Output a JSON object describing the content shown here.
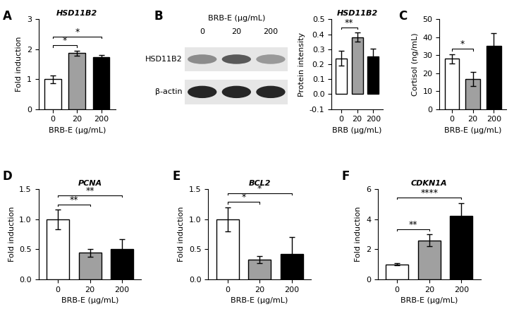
{
  "panel_labels": [
    "A",
    "B",
    "C",
    "D",
    "E",
    "F"
  ],
  "blot": {
    "header": "BRB-E (μg/mL)",
    "lanes": [
      "0",
      "20",
      "200"
    ],
    "rows": [
      "HSD11B2",
      "β-actin"
    ]
  },
  "chart_data": [
    {
      "type": "bar",
      "title": "HSD11B2",
      "ylabel": "Fold induction",
      "xlabel": "BRB-E (μg/mL)",
      "categories": [
        "0",
        "20",
        "200"
      ],
      "values": [
        1.0,
        1.87,
        1.73
      ],
      "errors": [
        0.13,
        0.08,
        0.08
      ],
      "colors": [
        "#ffffff",
        "#a0a0a0",
        "#000000"
      ],
      "ylim": [
        0,
        3
      ],
      "yticks": [
        0,
        1,
        2,
        3
      ],
      "annotations": [
        {
          "from": "0",
          "to": "20",
          "text": "*"
        },
        {
          "from": "0",
          "to": "200",
          "text": "*"
        }
      ]
    },
    {
      "type": "bar",
      "title": "HSD11B2",
      "ylabel": "Protein intensity",
      "xlabel": "BRB (μg/mL)",
      "categories": [
        "0",
        "20",
        "200"
      ],
      "values": [
        0.24,
        0.38,
        0.25
      ],
      "errors": [
        0.05,
        0.03,
        0.055
      ],
      "colors": [
        "#ffffff",
        "#a0a0a0",
        "#000000"
      ],
      "ylim": [
        -0.1,
        0.5
      ],
      "yticks": [
        -0.1,
        {
          "value": 0,
          "label": "0.0"
        },
        0.1,
        0.2,
        0.3,
        0.4,
        0.5
      ],
      "annotations": [
        {
          "from": "0",
          "to": "20",
          "text": "**"
        }
      ]
    },
    {
      "type": "bar",
      "ylabel": "Cortisol (ng/mL)",
      "xlabel": "BRB-E (μg/mL)",
      "categories": [
        "0",
        "20",
        "200"
      ],
      "values": [
        28,
        16.8,
        35.3
      ],
      "errors": [
        2.5,
        3.8,
        7
      ],
      "colors": [
        "#ffffff",
        "#a0a0a0",
        "#000000"
      ],
      "ylim": [
        0,
        50
      ],
      "yticks": [
        0,
        10,
        20,
        30,
        40,
        50
      ],
      "annotations": [
        {
          "from": "0",
          "to": "20",
          "text": "*"
        }
      ]
    },
    {
      "type": "bar",
      "title": "PCNA",
      "ylabel": "Fold induction",
      "xlabel": "BRB-E (μg/mL)",
      "categories": [
        "0",
        "20",
        "200"
      ],
      "values": [
        1.0,
        0.44,
        0.5
      ],
      "errors": [
        0.16,
        0.07,
        0.17
      ],
      "colors": [
        "#ffffff",
        "#a0a0a0",
        "#000000"
      ],
      "ylim": [
        0,
        1.5
      ],
      "yticks": [
        {
          "value": 0,
          "label": "0.0"
        },
        0.5,
        1.0,
        1.5
      ],
      "annotations": [
        {
          "from": "0",
          "to": "20",
          "text": "**"
        },
        {
          "from": "0",
          "to": "200",
          "text": "**"
        }
      ]
    },
    {
      "type": "bar",
      "title": "BCL2",
      "ylabel": "Fold induction",
      "xlabel": "BRB-E (μg/mL)",
      "categories": [
        "0",
        "20",
        "200"
      ],
      "values": [
        1.0,
        0.33,
        0.42
      ],
      "errors": [
        0.2,
        0.06,
        0.29
      ],
      "colors": [
        "#ffffff",
        "#a0a0a0",
        "#000000"
      ],
      "ylim": [
        0,
        1.5
      ],
      "yticks": [
        {
          "value": 0,
          "label": "0.0"
        },
        0.5,
        1.0,
        1.5
      ],
      "annotations": [
        {
          "from": "0",
          "to": "20",
          "text": "*"
        },
        {
          "from": "0",
          "to": "200",
          "text": "*"
        }
      ]
    },
    {
      "type": "bar",
      "title": "CDKN1A",
      "ylabel": "Fold induction",
      "xlabel": "BRB-E (μg/mL)",
      "categories": [
        "0",
        "20",
        "200"
      ],
      "values": [
        1.0,
        2.6,
        4.25
      ],
      "errors": [
        0.08,
        0.4,
        0.85
      ],
      "colors": [
        "#ffffff",
        "#a0a0a0",
        "#000000"
      ],
      "ylim": [
        0,
        6
      ],
      "yticks": [
        0,
        2,
        4,
        6
      ],
      "annotations": [
        {
          "from": "0",
          "to": "20",
          "text": "**"
        },
        {
          "from": "0",
          "to": "200",
          "text": "****"
        }
      ]
    }
  ]
}
